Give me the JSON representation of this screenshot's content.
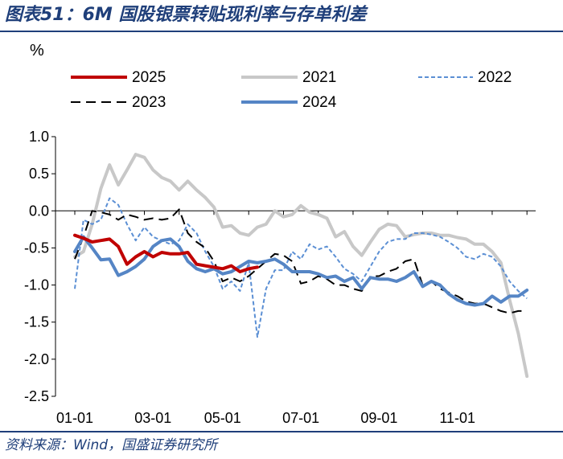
{
  "title": "图表51：6M 国股银票转贴现利率与存单利差",
  "source": "资料来源：Wind，国盛证券研究所",
  "chart_data": {
    "type": "line",
    "unit_label": "%",
    "ylim": [
      -2.5,
      1.0
    ],
    "yticks": [
      "1.0",
      "0.5",
      "0.0",
      "-0.5",
      "-1.0",
      "-1.5",
      "-2.0",
      "-2.5"
    ],
    "ytick_values": [
      1.0,
      0.5,
      0.0,
      -0.5,
      -1.0,
      -1.5,
      -2.0,
      -2.5
    ],
    "xticks": [
      "01-01",
      "03-01",
      "05-01",
      "07-01",
      "09-01",
      "11-01"
    ],
    "xtick_weeks": [
      0,
      9,
      17,
      26,
      35,
      44
    ],
    "x_unit": "week index from 01-01",
    "xlim": [
      0,
      53
    ],
    "legend_placement": "top",
    "series": [
      {
        "name": "2025",
        "color": "#c00000",
        "style": "solid",
        "width": 4,
        "x": [
          0,
          1,
          2,
          3,
          4,
          5,
          6,
          7,
          8,
          9,
          10,
          11,
          12,
          13,
          14,
          15,
          16,
          17,
          18,
          19,
          20,
          21
        ],
        "y": [
          -0.33,
          -0.37,
          -0.42,
          -0.4,
          -0.38,
          -0.48,
          -0.72,
          -0.62,
          -0.55,
          -0.62,
          -0.56,
          -0.58,
          -0.58,
          -0.56,
          -0.72,
          -0.74,
          -0.76,
          -0.78,
          -0.74,
          -0.82,
          -0.78,
          -0.76
        ]
      },
      {
        "name": "2021",
        "color": "#c8c8c8",
        "style": "solid",
        "width": 4,
        "x": [
          0,
          1,
          2,
          3,
          4,
          5,
          6,
          7,
          8,
          9,
          10,
          11,
          12,
          13,
          14,
          15,
          16,
          17,
          18,
          19,
          20,
          21,
          22,
          23,
          24,
          25,
          26,
          27,
          28,
          29,
          30,
          31,
          32,
          33,
          34,
          35,
          36,
          37,
          38,
          39,
          40,
          41,
          42,
          43,
          44,
          45,
          46,
          47,
          48,
          49,
          50,
          51,
          52
        ],
        "y": [
          -0.62,
          -0.55,
          -0.18,
          0.3,
          0.62,
          0.35,
          0.55,
          0.76,
          0.72,
          0.55,
          0.45,
          0.4,
          0.28,
          0.4,
          0.28,
          0.18,
          0.05,
          -0.22,
          -0.2,
          -0.3,
          -0.33,
          -0.22,
          -0.18,
          0.0,
          -0.08,
          -0.05,
          0.07,
          -0.02,
          -0.05,
          -0.1,
          -0.35,
          -0.28,
          -0.48,
          -0.6,
          -0.42,
          -0.25,
          -0.18,
          -0.2,
          -0.35,
          -0.32,
          -0.3,
          -0.3,
          -0.33,
          -0.33,
          -0.36,
          -0.38,
          -0.45,
          -0.45,
          -0.55,
          -0.7,
          -1.2,
          -1.65,
          -2.23
        ]
      },
      {
        "name": "2022",
        "color": "#5b8fd4",
        "style": "dashed",
        "width": 2,
        "x": [
          0,
          1,
          2,
          3,
          4,
          5,
          6,
          7,
          8,
          9,
          10,
          11,
          12,
          13,
          14,
          15,
          16,
          17,
          18,
          19,
          20,
          21,
          22,
          23,
          24,
          25,
          26,
          27,
          28,
          29,
          30,
          31,
          32,
          33,
          34,
          35,
          36,
          37,
          38,
          39,
          40,
          41,
          42,
          43,
          44,
          45,
          46,
          47,
          48,
          49,
          50,
          51,
          52
        ],
        "y": [
          -1.05,
          -0.12,
          -0.18,
          -0.12,
          0.17,
          0.08,
          -0.18,
          -0.4,
          -0.22,
          -0.35,
          -0.4,
          -0.45,
          -0.4,
          -0.18,
          -0.3,
          -0.55,
          -0.75,
          -1.05,
          -0.95,
          -1.08,
          -0.7,
          -1.7,
          -1.05,
          -0.8,
          -0.8,
          -0.55,
          -0.65,
          -0.45,
          -0.52,
          -0.48,
          -0.62,
          -0.78,
          -0.85,
          -0.95,
          -0.75,
          -0.55,
          -0.42,
          -0.38,
          -0.38,
          -0.3,
          -0.3,
          -0.32,
          -0.35,
          -0.42,
          -0.5,
          -0.62,
          -0.65,
          -0.58,
          -0.62,
          -0.75,
          -0.95,
          -1.08,
          -1.18
        ]
      },
      {
        "name": "2023",
        "color": "#000000",
        "style": "longdash",
        "width": 2,
        "x": [
          0,
          1,
          2,
          3,
          4,
          5,
          6,
          7,
          8,
          9,
          10,
          11,
          12,
          13,
          14,
          15,
          16,
          17,
          18,
          19,
          20,
          21,
          22,
          23,
          24,
          25,
          26,
          27,
          28,
          29,
          30,
          31,
          32,
          33,
          34,
          35,
          36,
          37,
          38,
          39,
          40,
          41,
          42,
          43,
          44,
          45,
          46,
          47,
          48,
          49,
          50,
          51,
          52
        ],
        "y": [
          -0.65,
          -0.35,
          0.0,
          -0.02,
          -0.05,
          -0.12,
          -0.05,
          -0.08,
          -0.12,
          -0.1,
          -0.12,
          -0.1,
          0.02,
          -0.3,
          -0.42,
          -0.5,
          -0.68,
          -0.95,
          -0.9,
          -0.95,
          -0.88,
          -0.78,
          -0.68,
          -0.58,
          -0.6,
          -0.68,
          -0.98,
          -0.95,
          -0.88,
          -0.92,
          -1.0,
          -1.0,
          -1.05,
          -1.08,
          -0.88,
          -0.88,
          -0.82,
          -0.78,
          -0.68,
          -0.65,
          -1.0,
          -0.95,
          -1.05,
          -1.1,
          -1.15,
          -1.22,
          -1.25,
          -1.25,
          -1.3,
          -1.35,
          -1.38,
          -1.35,
          -1.35
        ]
      },
      {
        "name": "2024",
        "color": "#5585c5",
        "style": "solid",
        "width": 4,
        "x": [
          0,
          1,
          2,
          3,
          4,
          5,
          6,
          7,
          8,
          9,
          10,
          11,
          12,
          13,
          14,
          15,
          16,
          17,
          18,
          19,
          20,
          21,
          22,
          23,
          24,
          25,
          26,
          27,
          28,
          29,
          30,
          31,
          32,
          33,
          34,
          35,
          36,
          37,
          38,
          39,
          40,
          41,
          42,
          43,
          44,
          45,
          46,
          47,
          48,
          49,
          50,
          51,
          52
        ],
        "y": [
          -0.55,
          -0.35,
          -0.5,
          -0.66,
          -0.65,
          -0.87,
          -0.82,
          -0.75,
          -0.65,
          -0.48,
          -0.4,
          -0.38,
          -0.48,
          -0.68,
          -0.78,
          -0.82,
          -0.78,
          -0.85,
          -0.82,
          -0.75,
          -0.68,
          -0.7,
          -0.68,
          -0.65,
          -0.72,
          -0.82,
          -0.82,
          -0.82,
          -0.85,
          -0.9,
          -0.88,
          -0.95,
          -0.9,
          -1.05,
          -0.9,
          -0.92,
          -0.92,
          -0.95,
          -0.9,
          -0.82,
          -1.02,
          -0.95,
          -1.0,
          -1.12,
          -1.2,
          -1.25,
          -1.27,
          -1.25,
          -1.15,
          -1.23,
          -1.15,
          -1.15,
          -1.07
        ]
      }
    ]
  }
}
